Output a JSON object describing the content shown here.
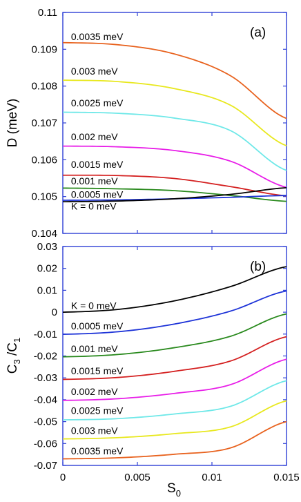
{
  "chart_data": [
    {
      "type": "line",
      "panel_label": "(a)",
      "ylabel": "D (meV)",
      "xlim": [
        0,
        0.015
      ],
      "ylim": [
        0.104,
        0.11
      ],
      "yticks": [
        "0.104",
        "0.105",
        "0.106",
        "0.107",
        "0.108",
        "0.109",
        "0.11"
      ],
      "x": [
        0,
        0.00375,
        0.0075,
        0.01125,
        0.015
      ],
      "series": [
        {
          "name": "0.0035 meV",
          "color": "#e8621e",
          "values": [
            0.10918,
            0.10912,
            0.10887,
            0.10828,
            0.10712
          ]
        },
        {
          "name": "0.003 meV",
          "color": "#e8e81e",
          "values": [
            0.10816,
            0.10812,
            0.10793,
            0.10748,
            0.10638
          ]
        },
        {
          "name": "0.0025 meV",
          "color": "#6ee8e8",
          "values": [
            0.10729,
            0.10726,
            0.10713,
            0.10679,
            0.10571
          ]
        },
        {
          "name": "0.002 meV",
          "color": "#e81ee8",
          "values": [
            0.10637,
            0.10635,
            0.10625,
            0.10596,
            0.10525
          ]
        },
        {
          "name": "0.0015 meV",
          "color": "#d42020",
          "values": [
            0.10558,
            0.10557,
            0.10549,
            0.10527,
            0.10502
          ]
        },
        {
          "name": "0.001 meV",
          "color": "#2a8a1e",
          "values": [
            0.10523,
            0.10521,
            0.10516,
            0.10503,
            0.10487
          ]
        },
        {
          "name": "0.0005 meV",
          "color": "#1e34d8",
          "values": [
            0.1049,
            0.10491,
            0.10494,
            0.10498,
            0.10503
          ]
        },
        {
          "name": "K = 0 meV",
          "color": "#000000",
          "values": [
            0.10486,
            0.10488,
            0.10494,
            0.10506,
            0.10524
          ]
        }
      ]
    },
    {
      "type": "line",
      "panel_label": "(b)",
      "ylabel": "C3/C1",
      "xlabel": "S0",
      "xlim": [
        0,
        0.015
      ],
      "ylim": [
        -0.07,
        0.03
      ],
      "xticks": [
        "0",
        "0.005",
        "0.01",
        "0.015"
      ],
      "yticks": [
        "-0.07",
        "-0.06",
        "-0.05",
        "-0.04",
        "-0.03",
        "-0.02",
        "-0.01",
        "0",
        "0.01",
        "0.02",
        "0.03"
      ],
      "x": [
        0,
        0.00375,
        0.0075,
        0.01125,
        0.015
      ],
      "series": [
        {
          "name": "K = 0 meV",
          "color": "#000000",
          "values": [
            0.0,
            0.0013,
            0.0052,
            0.0117,
            0.0208
          ]
        },
        {
          "name": "0.0005 meV",
          "color": "#1e34d8",
          "values": [
            -0.0101,
            -0.0089,
            -0.0054,
            0.0005,
            0.0097
          ]
        },
        {
          "name": "0.001 meV",
          "color": "#2a8a1e",
          "values": [
            -0.0204,
            -0.0193,
            -0.0162,
            -0.011,
            -0.0008
          ]
        },
        {
          "name": "0.0015 meV",
          "color": "#d42020",
          "values": [
            -0.0307,
            -0.0298,
            -0.027,
            -0.0223,
            -0.0112
          ]
        },
        {
          "name": "0.002 meV",
          "color": "#e81ee8",
          "values": [
            -0.0403,
            -0.0395,
            -0.0371,
            -0.0331,
            -0.0215
          ]
        },
        {
          "name": "0.0025 meV",
          "color": "#6ee8e8",
          "values": [
            -0.0492,
            -0.0486,
            -0.0465,
            -0.043,
            -0.0313
          ]
        },
        {
          "name": "0.003 meV",
          "color": "#e8e81e",
          "values": [
            -0.0579,
            -0.0573,
            -0.0555,
            -0.0524,
            -0.0405
          ]
        },
        {
          "name": "0.0035 meV",
          "color": "#e8621e",
          "values": [
            -0.067,
            -0.0665,
            -0.0649,
            -0.062,
            -0.05
          ]
        }
      ]
    }
  ]
}
